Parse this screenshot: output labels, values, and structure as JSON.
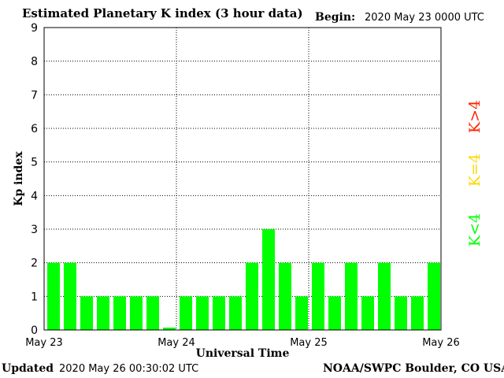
{
  "header": {
    "title": "Estimated Planetary K index (3 hour data)",
    "begin_label": "Begin:",
    "begin_value": "2020 May 23 0000 UTC"
  },
  "footer": {
    "updated_label": "Updated",
    "updated_value": "2020 May 26 00:30:02 UTC",
    "credit": "NOAA/SWPC Boulder, CO USA"
  },
  "colors": {
    "low": "#00ff00",
    "moderate": "#ffd700",
    "high": "#ff2200",
    "grid": "#000000"
  },
  "chart_data": {
    "type": "bar",
    "title": "Estimated Planetary K index (3 hour data)",
    "xlabel": "Universal Time",
    "ylabel": "Kp index",
    "ylim": [
      0,
      9
    ],
    "yticks": [
      "0",
      "1",
      "2",
      "3",
      "4",
      "5",
      "6",
      "7",
      "8",
      "9"
    ],
    "xticks": [
      "May 23",
      "May 24",
      "May 25",
      "May 26"
    ],
    "grid": true,
    "legend_position": "right",
    "legend": [
      "K<4",
      "K=4",
      "K>4"
    ],
    "bar_interval_hours": 3,
    "values": [
      2,
      2,
      1,
      1,
      1,
      1,
      1,
      0.07,
      1,
      1,
      1,
      1,
      2,
      3,
      2,
      1,
      2,
      1,
      2,
      1,
      2,
      1,
      1,
      2
    ]
  }
}
